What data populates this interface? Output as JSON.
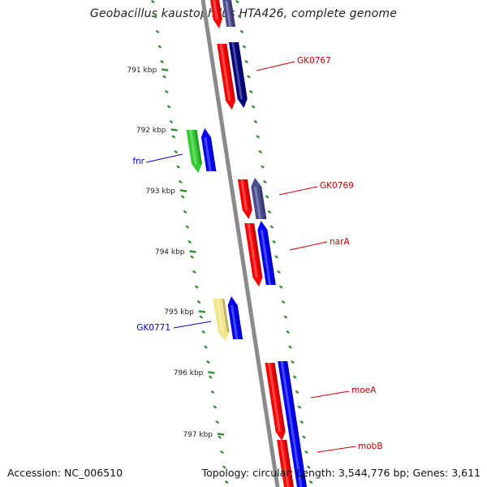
{
  "title": "Geobacillus kaustophilus HTA426, complete genome",
  "accession": "Accession: NC_006510",
  "summary": "Topology: circular; Length: 3,544,776 bp; Genes: 3,611",
  "colors": {
    "backbone": "#8a8a8a",
    "tick": "#2e8b2e",
    "red": "#ff0000",
    "navy": "#000080",
    "slate": "#4b4b90",
    "blue": "#0000ff",
    "green": "#33cc33",
    "yellow": "#f2e68c",
    "label_red": "#d10000",
    "label_blue": "#0000cc"
  },
  "kbp_ticks": [
    "791 kbp",
    "792 kbp",
    "793 kbp",
    "794 kbp",
    "795 kbp",
    "796 kbp",
    "797 kbp"
  ],
  "genes": [
    {
      "label": "GK0767",
      "label_color": "label_red"
    },
    {
      "label": "fnr",
      "label_color": "label_blue"
    },
    {
      "label": "GK0769",
      "label_color": "label_red"
    },
    {
      "label": "narA",
      "label_color": "label_red"
    },
    {
      "label": "GK0771",
      "label_color": "label_blue"
    },
    {
      "label": "moeA",
      "label_color": "label_red"
    },
    {
      "label": "mobB",
      "label_color": "label_red"
    }
  ]
}
